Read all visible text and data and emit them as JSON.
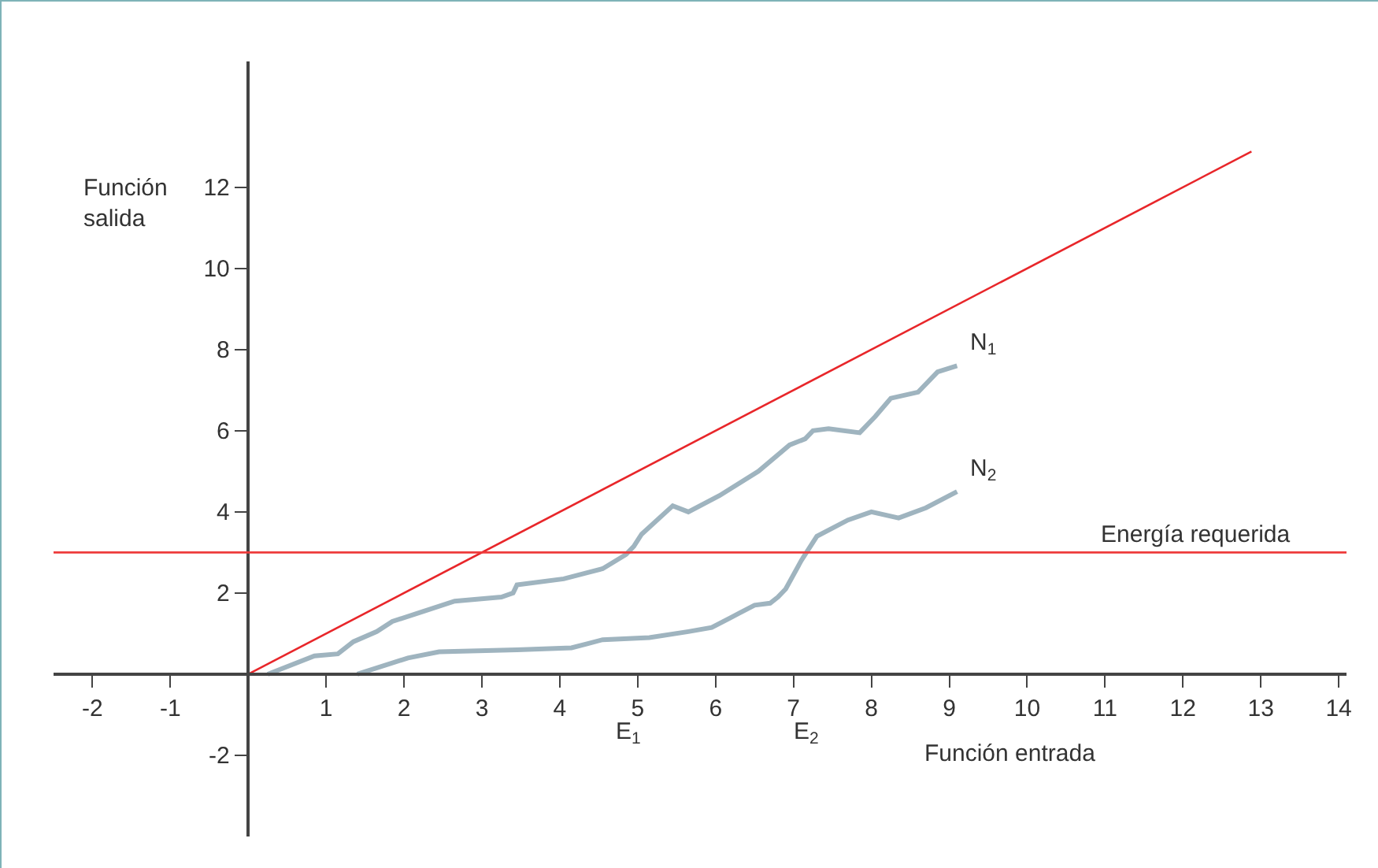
{
  "chart_data": {
    "type": "line",
    "xlabel": "Función entrada",
    "ylabel": "Función salida",
    "xlim": [
      -2.5,
      14.1
    ],
    "ylim": [
      -4,
      15.1
    ],
    "xticks": [
      -2,
      -1,
      1,
      2,
      3,
      4,
      5,
      6,
      7,
      8,
      9,
      10,
      11,
      12,
      13,
      14
    ],
    "yticks": [
      -2,
      2,
      4,
      6,
      8,
      10,
      12
    ],
    "grid": false,
    "legend": false,
    "marker": "none",
    "line_style": "solid",
    "series": [
      {
        "color": "#e8262a",
        "x": [
          0,
          12.88
        ],
        "values": [
          0,
          12.88
        ]
      },
      {
        "name": "N$_{1}$",
        "color": "#9fb4bf",
        "x": [
          0.25,
          0.85,
          1.15,
          1.35,
          1.65,
          1.85,
          2.25,
          2.65,
          3.25,
          3.4,
          3.45,
          4.05,
          4.35,
          4.55,
          4.85,
          4.95,
          5.05,
          5.45,
          5.65,
          6.05,
          6.55,
          6.95,
          7.15,
          7.25,
          7.45,
          7.85,
          8.05,
          8.25,
          8.6,
          8.85,
          9.1
        ],
        "values": [
          0,
          0.45,
          0.5,
          0.8,
          1.05,
          1.3,
          1.55,
          1.8,
          1.9,
          2.0,
          2.2,
          2.35,
          2.5,
          2.6,
          2.95,
          3.15,
          3.45,
          4.15,
          4.0,
          4.4,
          5.0,
          5.65,
          5.8,
          6.0,
          6.05,
          5.95,
          6.35,
          6.8,
          6.95,
          7.45,
          7.6
        ]
      },
      {
        "name": "N$_{2}$",
        "color": "#9fb4bf",
        "x": [
          1.4,
          2.05,
          2.45,
          3.45,
          4.15,
          4.35,
          4.55,
          5.15,
          5.65,
          5.95,
          6.2,
          6.3,
          6.5,
          6.7,
          6.8,
          6.9,
          7.1,
          7.3,
          7.7,
          8.0,
          8.35,
          8.7,
          9.1
        ],
        "values": [
          0,
          0.4,
          0.55,
          0.6,
          0.65,
          0.75,
          0.85,
          0.9,
          1.05,
          1.15,
          1.4,
          1.5,
          1.7,
          1.75,
          1.9,
          2.1,
          2.8,
          3.4,
          3.8,
          4.0,
          3.85,
          4.1,
          4.5
        ]
      }
    ],
    "ref_lines": [
      {
        "axis": "y",
        "value": 3,
        "label": "Energía requerida",
        "color": "#ee3b3b"
      }
    ],
    "annotations": [
      "E$_{1}$",
      "E$_{2}$"
    ]
  }
}
